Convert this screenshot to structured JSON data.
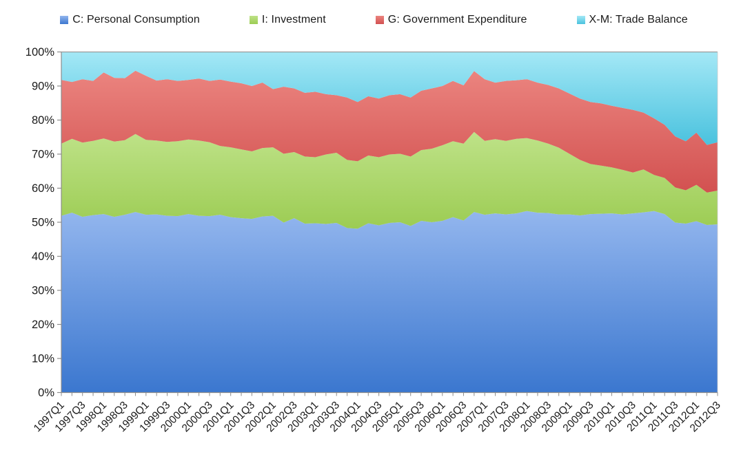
{
  "chart_data": {
    "type": "area",
    "stacking": "percent",
    "title": "",
    "xlabel": "",
    "ylabel": "",
    "ylim": [
      0,
      100
    ],
    "grid": false,
    "legend_position": "top",
    "ytick_labels": [
      "0%",
      "10%",
      "20%",
      "30%",
      "40%",
      "50%",
      "60%",
      "70%",
      "80%",
      "90%",
      "100%"
    ],
    "x_label_every": 2,
    "x": [
      "1997Q1",
      "1997Q2",
      "1997Q3",
      "1997Q4",
      "1998Q1",
      "1998Q2",
      "1998Q3",
      "1998Q4",
      "1999Q1",
      "1999Q2",
      "1999Q3",
      "1999Q4",
      "2000Q1",
      "2000Q2",
      "2000Q3",
      "2000Q4",
      "2001Q1",
      "2001Q2",
      "2001Q3",
      "2001Q4",
      "2002Q1",
      "2002Q2",
      "2002Q3",
      "2002Q4",
      "2003Q1",
      "2003Q2",
      "2003Q3",
      "2003Q4",
      "2004Q1",
      "2004Q2",
      "2004Q3",
      "2004Q4",
      "2005Q1",
      "2005Q2",
      "2005Q3",
      "2005Q4",
      "2006Q1",
      "2006Q2",
      "2006Q3",
      "2006Q4",
      "2007Q1",
      "2007Q2",
      "2007Q3",
      "2007Q4",
      "2008Q1",
      "2008Q2",
      "2008Q3",
      "2008Q4",
      "2009Q1",
      "2009Q2",
      "2009Q3",
      "2009Q4",
      "2010Q1",
      "2010Q2",
      "2010Q3",
      "2010Q4",
      "2011Q1",
      "2011Q2",
      "2011Q3",
      "2011Q4",
      "2012Q1",
      "2012Q2",
      "2012Q3"
    ],
    "series": [
      {
        "name": "C: Personal Consumption",
        "color_top": "#93B6EE",
        "color_bottom": "#3B77CF",
        "values": [
          51.9,
          52.8,
          51.6,
          52.1,
          52.4,
          51.6,
          52.2,
          53.0,
          52.2,
          52.3,
          51.9,
          51.8,
          52.4,
          51.9,
          51.8,
          52.2,
          51.5,
          51.2,
          51.0,
          51.7,
          51.9,
          49.9,
          51.2,
          49.6,
          49.7,
          49.5,
          49.8,
          48.3,
          48.1,
          49.7,
          49.1,
          49.8,
          50.0,
          48.9,
          50.4,
          50.0,
          50.4,
          51.5,
          50.5,
          53.0,
          52.2,
          52.6,
          52.3,
          52.6,
          53.3,
          52.8,
          52.7,
          52.3,
          52.3,
          52.0,
          52.4,
          52.5,
          52.6,
          52.3,
          52.6,
          52.9,
          53.3,
          52.4,
          49.9,
          49.6,
          50.3,
          49.2,
          49.4
        ]
      },
      {
        "name": "I: Investment",
        "color_top": "#BEE288",
        "color_bottom": "#9CCC53",
        "values": [
          21.2,
          21.7,
          21.8,
          21.8,
          22.2,
          22.1,
          21.9,
          22.9,
          22.0,
          21.7,
          21.7,
          22.0,
          21.9,
          22.1,
          21.7,
          20.2,
          20.5,
          20.2,
          19.8,
          20.1,
          20.1,
          20.2,
          19.4,
          19.7,
          19.4,
          20.4,
          20.6,
          20.0,
          19.8,
          19.9,
          20.0,
          20.1,
          20.1,
          20.4,
          20.8,
          21.6,
          22.2,
          22.3,
          22.6,
          23.5,
          21.7,
          21.8,
          21.6,
          21.9,
          21.4,
          21.2,
          20.4,
          19.6,
          17.8,
          16.3,
          14.7,
          14.1,
          13.5,
          13.1,
          12.0,
          12.6,
          10.6,
          10.6,
          10.3,
          9.8,
          10.7,
          9.5,
          9.9
        ]
      },
      {
        "name": "G: Government Expenditure",
        "color_top": "#EB847F",
        "color_bottom": "#D25150",
        "values": [
          18.7,
          16.7,
          18.6,
          17.6,
          19.4,
          18.7,
          18.2,
          18.6,
          18.8,
          17.6,
          18.4,
          17.7,
          17.5,
          18.2,
          18.0,
          19.5,
          19.3,
          19.4,
          19.2,
          19.2,
          17.1,
          19.7,
          18.7,
          18.7,
          19.2,
          17.7,
          16.9,
          18.3,
          17.4,
          17.4,
          17.2,
          17.4,
          17.5,
          17.3,
          17.4,
          17.7,
          17.4,
          17.7,
          17.1,
          17.9,
          18.1,
          16.6,
          17.6,
          17.2,
          17.3,
          17.0,
          17.2,
          17.4,
          17.7,
          18.0,
          18.2,
          18.3,
          18.1,
          18.2,
          18.4,
          16.7,
          16.6,
          15.6,
          15.0,
          14.4,
          15.3,
          14.0,
          14.2
        ]
      },
      {
        "name": "X-M: Trade Balance",
        "color_top": "#A4E8F6",
        "color_bottom": "#4AC2DE",
        "values": [
          8.2,
          8.8,
          8.0,
          8.5,
          6.0,
          7.6,
          7.7,
          5.5,
          7.0,
          8.4,
          8.0,
          8.5,
          8.2,
          7.8,
          8.5,
          8.1,
          8.7,
          9.2,
          10.0,
          9.0,
          10.9,
          10.2,
          10.7,
          12.0,
          11.7,
          12.4,
          12.7,
          13.4,
          14.7,
          13.0,
          13.7,
          12.7,
          12.4,
          13.4,
          11.4,
          10.7,
          10.0,
          8.5,
          9.8,
          5.6,
          8.0,
          9.0,
          8.5,
          8.3,
          8.0,
          9.0,
          9.7,
          10.7,
          12.2,
          13.7,
          14.7,
          15.1,
          15.8,
          16.4,
          17.0,
          17.8,
          19.5,
          21.4,
          24.8,
          26.2,
          23.7,
          27.3,
          26.5
        ]
      }
    ]
  }
}
